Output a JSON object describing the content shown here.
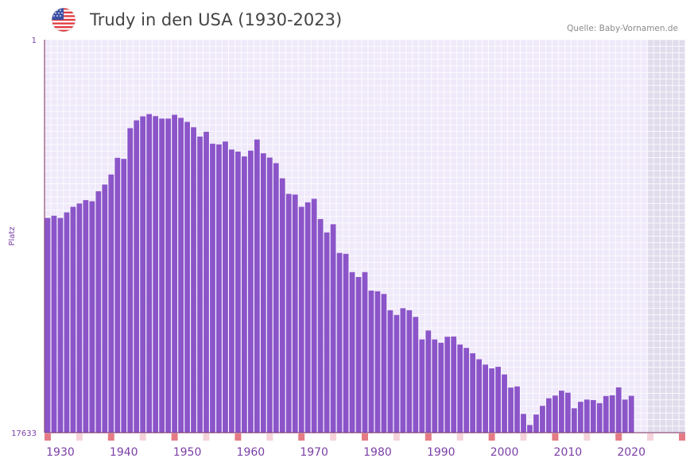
{
  "header": {
    "title": "Trudy in den USA (1930-2023)",
    "source": "Quelle: Baby-Vornamen.de",
    "flag_icon": "us-flag-icon"
  },
  "colors": {
    "bar": "#8b55c9",
    "plot_bg": "#efe9fa",
    "future_bg": "#e1dcec",
    "grid": "#ffffff",
    "axis": "#7a2a5c",
    "axis_text": "#7b3fa6",
    "marker_strong": "#e57b85",
    "marker_light": "#f6d3da"
  },
  "chart_data": {
    "type": "bar",
    "title": "Trudy in den USA (1930-2023)",
    "ylabel": "Platz",
    "xlabel": "",
    "y_axis_inverted": true,
    "ylim": [
      1,
      17633
    ],
    "ytick_labels": [
      "1",
      "17633"
    ],
    "xlim": [
      1928,
      2028
    ],
    "xtick_labels": [
      "1930",
      "1940",
      "1950",
      "1960",
      "1970",
      "1980",
      "1990",
      "2000",
      "2010",
      "2020"
    ],
    "future_shade_from_year": 2022,
    "marker_strong_years": [
      1928,
      1938,
      1948,
      1958,
      1968,
      1978,
      1988,
      1998,
      2008,
      2018,
      2028
    ],
    "marker_light_years": [
      1933,
      1943,
      1953,
      1963,
      1973,
      1983,
      1993,
      2003,
      2013,
      2023
    ],
    "years": [
      1928,
      1929,
      1930,
      1931,
      1932,
      1933,
      1934,
      1935,
      1936,
      1937,
      1938,
      1939,
      1940,
      1941,
      1942,
      1943,
      1944,
      1945,
      1946,
      1947,
      1948,
      1949,
      1950,
      1951,
      1952,
      1953,
      1954,
      1955,
      1956,
      1957,
      1958,
      1959,
      1960,
      1961,
      1962,
      1963,
      1964,
      1965,
      1966,
      1967,
      1968,
      1969,
      1970,
      1971,
      1972,
      1973,
      1974,
      1975,
      1976,
      1977,
      1978,
      1979,
      1980,
      1981,
      1982,
      1983,
      1984,
      1985,
      1986,
      1987,
      1988,
      1989,
      1990,
      1991,
      1992,
      1993,
      1994,
      1995,
      1996,
      1997,
      1998,
      1999,
      2000,
      2001,
      2002,
      2003,
      2004,
      2005,
      2006,
      2007,
      2008,
      2009,
      2010,
      2011,
      2012,
      2013,
      2014,
      2015,
      2016,
      2017,
      2018,
      2019,
      2020,
      2021,
      2022
    ],
    "ranks": [
      8000,
      7900,
      8000,
      7750,
      7500,
      7350,
      7200,
      7250,
      6800,
      6500,
      6050,
      5300,
      5350,
      3970,
      3620,
      3440,
      3340,
      3430,
      3540,
      3540,
      3370,
      3510,
      3690,
      3930,
      4350,
      4130,
      4670,
      4700,
      4570,
      4930,
      5020,
      5240,
      4980,
      4480,
      5100,
      5290,
      5540,
      6220,
      6920,
      6950,
      7500,
      7300,
      7140,
      8050,
      8650,
      8280,
      9570,
      9610,
      10430,
      10650,
      10430,
      11260,
      11290,
      11410,
      12140,
      12350,
      12050,
      12140,
      12440,
      13450,
      13050,
      13450,
      13600,
      13330,
      13320,
      13680,
      13830,
      14070,
      14340,
      14580,
      14750,
      14680,
      15020,
      15610,
      15560,
      16790,
      17290,
      16820,
      16430,
      16090,
      15970,
      15750,
      15840,
      16540,
      16250,
      16150,
      16170,
      16310,
      15990,
      15960,
      15600,
      16150,
      15980,
      17633,
      17633
    ]
  }
}
